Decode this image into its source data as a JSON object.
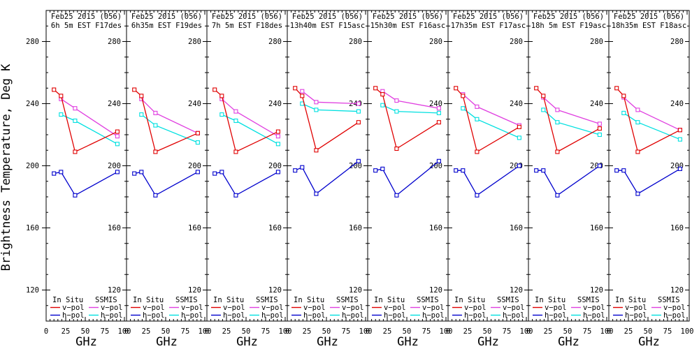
{
  "figure": {
    "ylabel": "Brightness Temperature, Deg K",
    "xlabel": "GHz",
    "background": "#ffffff",
    "axis_color": "#000000",
    "text_color": "#000000",
    "y_ticks": [
      280,
      240,
      200,
      160,
      120
    ],
    "x_ticks": [
      0,
      25,
      50,
      75,
      100
    ],
    "ylim": [
      100,
      300
    ],
    "xlim": [
      0,
      102.7
    ],
    "legend": {
      "group1": "In Situ",
      "group2": "SSMIS",
      "vpol_label": "v−pol",
      "hpol_label": "h−pol"
    },
    "colors": {
      "in_situ_v": "#e00000",
      "in_situ_h": "#0000cd",
      "ssmis_v": "#e040e0",
      "ssmis_h": "#00e0e0"
    }
  },
  "chart_data": {
    "type": "line",
    "title_line1": "Feb25 2015 (056)",
    "xlabel": "GHz",
    "x_insitu": [
      10,
      19,
      37,
      91
    ],
    "x_ssmis": [
      19,
      37,
      91
    ],
    "grid": false,
    "legend_position": "bottom-inside",
    "panels": [
      {
        "subtitle": "6h 5m EST F17des",
        "in_situ_v": [
          249,
          245,
          209,
          222
        ],
        "in_situ_h": [
          195,
          196,
          181,
          196
        ],
        "ssmis_v": [
          243,
          237,
          219
        ],
        "ssmis_h": [
          233,
          229,
          214
        ]
      },
      {
        "subtitle": "6h35m EST F19des",
        "in_situ_v": [
          249,
          245,
          209,
          221
        ],
        "in_situ_h": [
          195,
          196,
          181,
          196
        ],
        "ssmis_v": [
          243,
          234,
          221
        ],
        "ssmis_h": [
          233,
          226,
          215
        ]
      },
      {
        "subtitle": "7h 5m EST F18des",
        "in_situ_v": [
          249,
          245,
          209,
          222
        ],
        "in_situ_h": [
          195,
          196,
          181,
          196
        ],
        "ssmis_v": [
          243,
          235,
          219
        ],
        "ssmis_h": [
          233,
          229,
          214
        ]
      },
      {
        "subtitle": "13h40m EST F15asc",
        "in_situ_v": [
          250,
          245,
          210,
          228
        ],
        "in_situ_h": [
          197,
          199,
          182,
          203
        ],
        "ssmis_v": [
          248,
          241,
          240
        ],
        "ssmis_h": [
          240,
          236,
          235
        ]
      },
      {
        "subtitle": "15h30m EST F16asc",
        "in_situ_v": [
          250,
          246,
          211,
          228
        ],
        "in_situ_h": [
          197,
          198,
          181,
          203
        ],
        "ssmis_v": [
          248,
          242,
          237
        ],
        "ssmis_h": [
          239,
          235,
          234
        ]
      },
      {
        "subtitle": "17h35m EST F17asc",
        "in_situ_v": [
          250,
          245,
          209,
          225
        ],
        "in_situ_h": [
          197,
          197,
          181,
          200
        ],
        "ssmis_v": [
          246,
          238,
          226
        ],
        "ssmis_h": [
          237,
          230,
          218
        ]
      },
      {
        "subtitle": "18h 5m EST F19asc",
        "in_situ_v": [
          250,
          245,
          209,
          224
        ],
        "in_situ_h": [
          197,
          197,
          181,
          200
        ],
        "ssmis_v": [
          244,
          236,
          227
        ],
        "ssmis_h": [
          236,
          228,
          220
        ]
      },
      {
        "subtitle": "18h35m EST F18asc",
        "in_situ_v": [
          250,
          245,
          209,
          223
        ],
        "in_situ_h": [
          197,
          197,
          182,
          198
        ],
        "ssmis_v": [
          244,
          236,
          223
        ],
        "ssmis_h": [
          234,
          228,
          217
        ]
      }
    ]
  }
}
